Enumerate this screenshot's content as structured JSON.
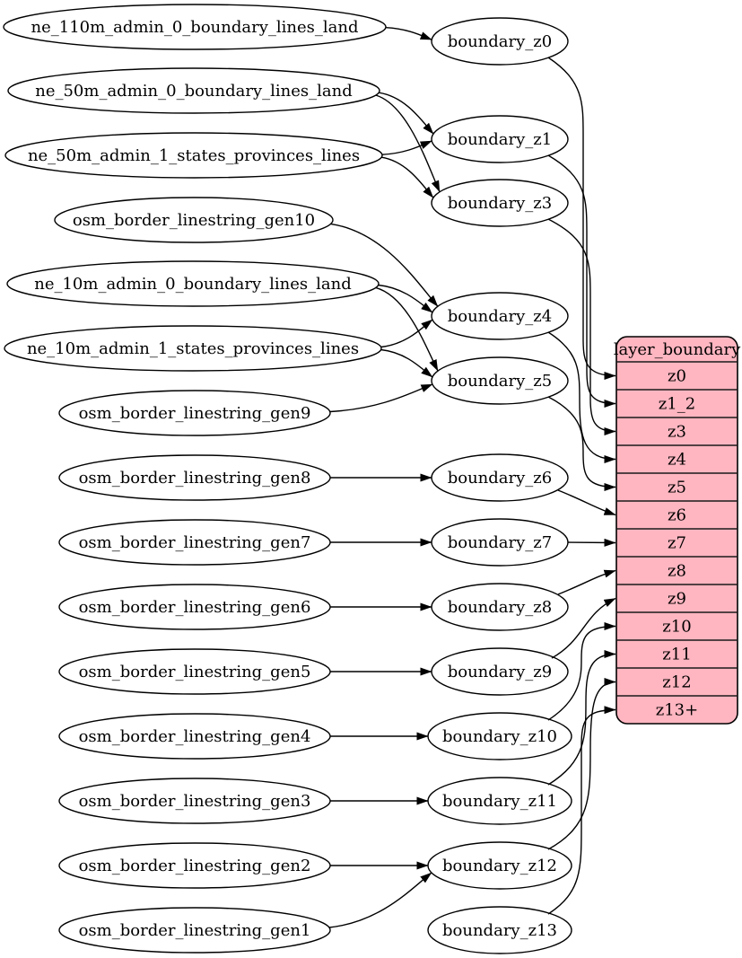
{
  "diagram": {
    "colors": {
      "background": "#ffffff",
      "stroke": "#000000",
      "node_fill": "#ffffff",
      "table_fill": "#ffb6c1"
    },
    "sources": [
      {
        "id": "ne_110m_admin_0_boundary_lines_land",
        "label": "ne_110m_admin_0_boundary_lines_land"
      },
      {
        "id": "ne_50m_admin_0_boundary_lines_land",
        "label": "ne_50m_admin_0_boundary_lines_land"
      },
      {
        "id": "ne_50m_admin_1_states_provinces_lines",
        "label": "ne_50m_admin_1_states_provinces_lines"
      },
      {
        "id": "osm_border_linestring_gen10",
        "label": "osm_border_linestring_gen10"
      },
      {
        "id": "ne_10m_admin_0_boundary_lines_land",
        "label": "ne_10m_admin_0_boundary_lines_land"
      },
      {
        "id": "ne_10m_admin_1_states_provinces_lines",
        "label": "ne_10m_admin_1_states_provinces_lines"
      },
      {
        "id": "osm_border_linestring_gen9",
        "label": "osm_border_linestring_gen9"
      },
      {
        "id": "osm_border_linestring_gen8",
        "label": "osm_border_linestring_gen8"
      },
      {
        "id": "osm_border_linestring_gen7",
        "label": "osm_border_linestring_gen7"
      },
      {
        "id": "osm_border_linestring_gen6",
        "label": "osm_border_linestring_gen6"
      },
      {
        "id": "osm_border_linestring_gen5",
        "label": "osm_border_linestring_gen5"
      },
      {
        "id": "osm_border_linestring_gen4",
        "label": "osm_border_linestring_gen4"
      },
      {
        "id": "osm_border_linestring_gen3",
        "label": "osm_border_linestring_gen3"
      },
      {
        "id": "osm_border_linestring_gen2",
        "label": "osm_border_linestring_gen2"
      },
      {
        "id": "osm_border_linestring_gen1",
        "label": "osm_border_linestring_gen1"
      }
    ],
    "stages": [
      {
        "id": "boundary_z0",
        "label": "boundary_z0"
      },
      {
        "id": "boundary_z1",
        "label": "boundary_z1"
      },
      {
        "id": "boundary_z3",
        "label": "boundary_z3"
      },
      {
        "id": "boundary_z4",
        "label": "boundary_z4"
      },
      {
        "id": "boundary_z5",
        "label": "boundary_z5"
      },
      {
        "id": "boundary_z6",
        "label": "boundary_z6"
      },
      {
        "id": "boundary_z7",
        "label": "boundary_z7"
      },
      {
        "id": "boundary_z8",
        "label": "boundary_z8"
      },
      {
        "id": "boundary_z9",
        "label": "boundary_z9"
      },
      {
        "id": "boundary_z10",
        "label": "boundary_z10"
      },
      {
        "id": "boundary_z11",
        "label": "boundary_z11"
      },
      {
        "id": "boundary_z12",
        "label": "boundary_z12"
      },
      {
        "id": "boundary_z13",
        "label": "boundary_z13"
      }
    ],
    "table": {
      "id": "layer_boundary",
      "title": "layer_boundary",
      "rows": [
        "z0",
        "z1_2",
        "z3",
        "z4",
        "z5",
        "z6",
        "z7",
        "z8",
        "z9",
        "z10",
        "z11",
        "z12",
        "z13+"
      ]
    },
    "edges": [
      [
        "ne_110m_admin_0_boundary_lines_land",
        "boundary_z0"
      ],
      [
        "ne_50m_admin_0_boundary_lines_land",
        "boundary_z1"
      ],
      [
        "ne_50m_admin_0_boundary_lines_land",
        "boundary_z3"
      ],
      [
        "ne_50m_admin_1_states_provinces_lines",
        "boundary_z1"
      ],
      [
        "ne_50m_admin_1_states_provinces_lines",
        "boundary_z3"
      ],
      [
        "osm_border_linestring_gen10",
        "boundary_z4"
      ],
      [
        "ne_10m_admin_0_boundary_lines_land",
        "boundary_z4"
      ],
      [
        "ne_10m_admin_0_boundary_lines_land",
        "boundary_z5"
      ],
      [
        "ne_10m_admin_1_states_provinces_lines",
        "boundary_z4"
      ],
      [
        "ne_10m_admin_1_states_provinces_lines",
        "boundary_z5"
      ],
      [
        "osm_border_linestring_gen9",
        "boundary_z5"
      ],
      [
        "osm_border_linestring_gen8",
        "boundary_z6"
      ],
      [
        "osm_border_linestring_gen7",
        "boundary_z7"
      ],
      [
        "osm_border_linestring_gen6",
        "boundary_z8"
      ],
      [
        "osm_border_linestring_gen5",
        "boundary_z9"
      ],
      [
        "osm_border_linestring_gen4",
        "boundary_z10"
      ],
      [
        "osm_border_linestring_gen3",
        "boundary_z11"
      ],
      [
        "osm_border_linestring_gen2",
        "boundary_z12"
      ],
      [
        "osm_border_linestring_gen1",
        "boundary_z12"
      ],
      [
        "boundary_z0",
        "layer_boundary:z0"
      ],
      [
        "boundary_z1",
        "layer_boundary:z1_2"
      ],
      [
        "boundary_z3",
        "layer_boundary:z3"
      ],
      [
        "boundary_z4",
        "layer_boundary:z4"
      ],
      [
        "boundary_z5",
        "layer_boundary:z5"
      ],
      [
        "boundary_z6",
        "layer_boundary:z6"
      ],
      [
        "boundary_z7",
        "layer_boundary:z7"
      ],
      [
        "boundary_z8",
        "layer_boundary:z8"
      ],
      [
        "boundary_z9",
        "layer_boundary:z9"
      ],
      [
        "boundary_z10",
        "layer_boundary:z10"
      ],
      [
        "boundary_z11",
        "layer_boundary:z11"
      ],
      [
        "boundary_z12",
        "layer_boundary:z12"
      ],
      [
        "boundary_z13",
        "layer_boundary:z13+"
      ]
    ]
  }
}
